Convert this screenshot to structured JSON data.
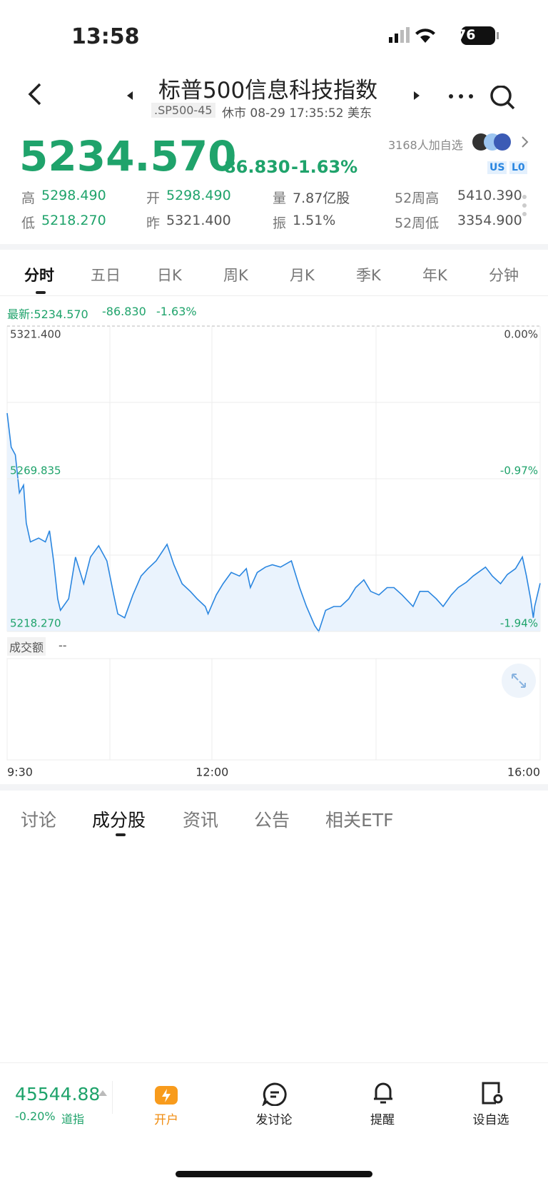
{
  "status_bar": {
    "time": "13:58",
    "battery": "76"
  },
  "header": {
    "title": "标普500信息科技指数",
    "code": ".SP500-45",
    "status": "休市 08-29 17:35:52 美东"
  },
  "quote": {
    "price": "5234.570",
    "change": "-86.830",
    "change_pct": "-1.63%",
    "watchers": "3168人加自选",
    "badges": [
      "US",
      "L0"
    ]
  },
  "stats": [
    [
      {
        "label": "高",
        "value": "5298.490"
      },
      {
        "label": "开",
        "value": "5298.490"
      },
      {
        "label": "量",
        "value": "7.87亿股"
      },
      {
        "label": "52周高",
        "value": "5410.390"
      }
    ],
    [
      {
        "label": "低",
        "value": "5218.270"
      },
      {
        "label": "昨",
        "value": "5321.400"
      },
      {
        "label": "振",
        "value": "1.51%"
      },
      {
        "label": "52周低",
        "value": "3354.900"
      }
    ]
  ],
  "tabs": [
    "分时",
    "五日",
    "日K",
    "周K",
    "月K",
    "季K",
    "年K",
    "分钟"
  ],
  "latest_line": [
    "最新:5234.570",
    "-86.830",
    "-1.63%"
  ],
  "volume": {
    "label": "成交额",
    "value": "--"
  },
  "section_tabs": [
    "讨论",
    "成分股",
    "资讯",
    "公告",
    "相关ETF"
  ],
  "bottom_bar": {
    "index_value": "45544.88",
    "index_change": "-0.20%",
    "index_name": "道指",
    "actions": [
      "开户",
      "发讨论",
      "提醒",
      "设自选"
    ]
  },
  "chart_data": {
    "type": "line",
    "color": "#2a86e0",
    "x": [
      0,
      3,
      6,
      9,
      12,
      14,
      17,
      23,
      28,
      31,
      34,
      37,
      39,
      45,
      50,
      56,
      61,
      67,
      73,
      78,
      81,
      86,
      92,
      98,
      103,
      109,
      117,
      122,
      128,
      134,
      139,
      145,
      147,
      153,
      158,
      164,
      170,
      175,
      178,
      183,
      189,
      194,
      200,
      208,
      214,
      219,
      225,
      228,
      233,
      239,
      244,
      250,
      255,
      261,
      266,
      272,
      278,
      283,
      289,
      297,
      302,
      308,
      314,
      319,
      325,
      330,
      336,
      341,
      350,
      355,
      361,
      366,
      372,
      377,
      380,
      383,
      385,
      386,
      390
    ],
    "values": [
      5292.0,
      5280.5,
      5277.9,
      5265.1,
      5267.7,
      5254.9,
      5248.5,
      5249.8,
      5248.5,
      5252.3,
      5242.1,
      5229.3,
      5225.4,
      5229.3,
      5243.4,
      5234.4,
      5243.4,
      5247.2,
      5242.1,
      5230.6,
      5224.2,
      5222.9,
      5230.6,
      5237.0,
      5239.5,
      5242.1,
      5247.7,
      5240.8,
      5234.4,
      5231.8,
      5229.3,
      5226.7,
      5224.2,
      5230.6,
      5234.4,
      5238.2,
      5237.0,
      5239.5,
      5233.1,
      5238.2,
      5240.0,
      5240.8,
      5240.0,
      5242.1,
      5233.1,
      5226.7,
      5220.3,
      5218.27,
      5225.4,
      5226.7,
      5226.7,
      5229.3,
      5233.1,
      5235.7,
      5231.8,
      5230.6,
      5233.1,
      5233.1,
      5230.6,
      5226.7,
      5231.8,
      5231.8,
      5229.3,
      5226.7,
      5230.6,
      5233.1,
      5234.9,
      5237.0,
      5240.0,
      5237.0,
      5234.4,
      5237.5,
      5239.5,
      5243.4,
      5237.0,
      5229.3,
      5222.9,
      5226.7,
      5234.57
    ],
    "xlim": [
      0,
      390
    ],
    "xticks": [
      {
        "value": 0,
        "label": "9:30"
      },
      {
        "value": 150,
        "label": "12:00"
      },
      {
        "value": 390,
        "label": "16:00"
      }
    ],
    "ylim": [
      5218.27,
      5321.4
    ],
    "yticks": [
      {
        "value": 5218.27,
        "label": "5218.270"
      },
      {
        "value": 5269.835,
        "label": "5269.835"
      },
      {
        "value": 5321.4,
        "label": "5321.400"
      }
    ],
    "y2lim": [
      -1.94,
      0
    ],
    "y2ticks": [
      {
        "value": -1.94,
        "label": "-1.94%"
      },
      {
        "value": -0.97,
        "label": "-0.97%"
      },
      {
        "value": 0,
        "label": "0.00%"
      }
    ]
  }
}
